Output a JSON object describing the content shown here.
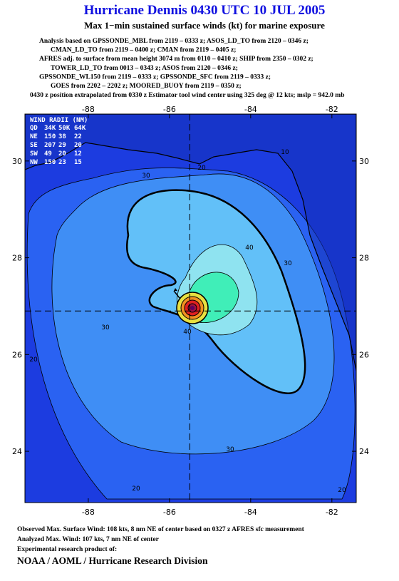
{
  "header": {
    "title": "Hurricane Dennis 0430 UTC 10 JUL 2005",
    "subtitle": "Max 1−min sustained surface winds (kt) for marine exposure",
    "analysis_lines": [
      "Analysis based on  GPSSONDE_MBL from 2119 – 0333 z;  ASOS_LD_TO from 2120 – 0346 z;",
      "CMAN_LD_TO from 2119 – 0400 z;  CMAN from 2119 – 0405 z;",
      "AFRES adj. to surface from mean height 3074 m from 0110 – 0410 z;  SHIP from 2350 – 0302 z;",
      "TOWER_LD_TO from 0013 – 0343 z;  ASOS from 2120 – 0346 z;",
      "GPSSONDE_WL150 from 2119 – 0333 z;  GPSSONDE_SFC from 2119 – 0333 z;",
      "GOES from 2202 – 2202 z;  MOORED_BUOY from 2119 – 0350 z;"
    ],
    "position_note": "0430 z position extrapolated from 0330 z Estimator tool wind center using 325 deg @ 12 kts; mslp = 942.0 mb"
  },
  "map": {
    "lon_range": [
      -89.56,
      -81.4
    ],
    "lat_range": [
      22.94,
      30.97
    ],
    "lon_ticks": [
      -88,
      -86,
      -84,
      -82
    ],
    "lat_ticks": [
      24,
      26,
      28,
      30
    ],
    "center": {
      "lon": -85.5,
      "lat": 26.9
    },
    "contour_labels": [
      "10",
      "20",
      "30",
      "40",
      "30",
      "30",
      "20",
      "40",
      "30",
      "20",
      "20"
    ]
  },
  "wind_radii": {
    "title": "WIND RADII (NM)",
    "columns": [
      "QD",
      "34K",
      "50K",
      "64K"
    ],
    "rows": [
      {
        "quadrant": "NE",
        "values": [
          150,
          38,
          22
        ]
      },
      {
        "quadrant": "SE",
        "values": [
          207,
          29,
          20
        ]
      },
      {
        "quadrant": "SW",
        "values": [
          49,
          20,
          12
        ]
      },
      {
        "quadrant": "NW",
        "values": [
          150,
          23,
          15
        ]
      }
    ]
  },
  "footer": {
    "lines": [
      "Observed Max. Surface Wind: 108 kts, 8 nm NE of center based on 0327 z AFRES sfc measurement",
      "Analyzed Max. Wind: 107 kts, 7 nm NE of center",
      "Experimental research product of:"
    ],
    "organization": "NOAA / AOML / Hurricane Research Division"
  }
}
